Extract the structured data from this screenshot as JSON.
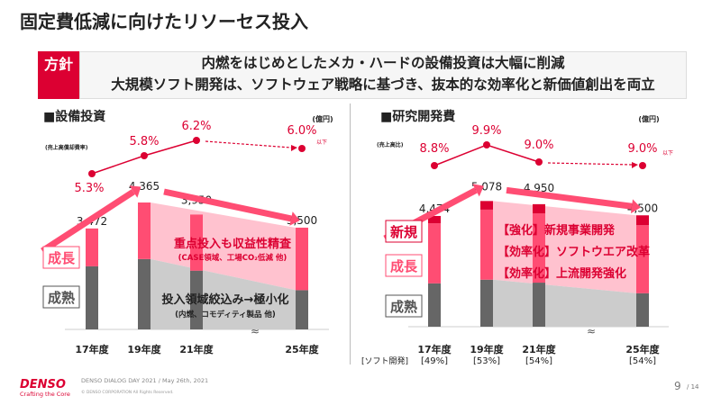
{
  "title": "固定費低減に向けたリソーセス投入",
  "policy": {
    "tag": "方針",
    "lines": [
      "内燃をはじめとしたメカ・ハードの設備投資は大幅に削減",
      "大規模ソフト開発は、ソフトウェア戦略に基づき、抜本的な効率化と新価値創出を両立"
    ]
  },
  "colors": {
    "accent": "#dc0032",
    "growth": "#ff4d73",
    "growth_band": "#ffc2cf",
    "mature": "#666666",
    "mature_band": "#cccccc",
    "new": "#dc0032"
  },
  "chart_data": [
    {
      "type": "bar",
      "title": "■設備投資",
      "unit": "(億円)",
      "rate_label": "(売上高償却費率)",
      "categories": [
        "17年度",
        "19年度",
        "21年度",
        "25年度"
      ],
      "totals": [
        3472,
        4365,
        3950,
        3500
      ],
      "total_labels": [
        "3,472",
        "4,365",
        "3,950",
        "3,500"
      ],
      "series": [
        {
          "name": "成熟",
          "values": [
            2170,
            2420,
            2020,
            1350
          ]
        },
        {
          "name": "成長",
          "values": [
            1302,
            1945,
            1930,
            2150
          ]
        }
      ],
      "rates": [
        5.3,
        5.8,
        6.2,
        6.0
      ],
      "rate_labels": [
        "5.3%",
        "5.8%",
        "6.2%",
        "6.0%"
      ],
      "rate_suffix": "以下",
      "annotations": {
        "growth_main": "重点投入も収益性精査",
        "growth_sub": "(CASE領域、工場CO₂低減 他)",
        "mature_main": "投入領域絞込み→極小化",
        "mature_sub": "(内燃、コモディティ製品 他)"
      },
      "ylim": [
        0,
        5000
      ]
    },
    {
      "type": "bar",
      "title": "■研究開発費",
      "unit": "(億円)",
      "rate_label": "(売上高比)",
      "categories": [
        "17年度",
        "19年度",
        "21年度",
        "25年度"
      ],
      "totals": [
        4474,
        5078,
        4950,
        4500
      ],
      "total_labels": [
        "4,474",
        "5,078",
        "4,950",
        "4,500"
      ],
      "series": [
        {
          "name": "成熟",
          "values": [
            1750,
            1900,
            1780,
            1350
          ]
        },
        {
          "name": "成長",
          "values": [
            2430,
            2830,
            2800,
            2750
          ]
        },
        {
          "name": "新規",
          "values": [
            294,
            348,
            370,
            400
          ]
        }
      ],
      "rates": [
        8.8,
        9.9,
        9.0,
        9.0
      ],
      "rate_labels": [
        "8.8%",
        "9.9%",
        "9.0%",
        "9.0%"
      ],
      "rate_suffix": "以下",
      "soft_label": "[ソフト開発]",
      "soft_share": [
        "[49%]",
        "[53%]",
        "[54%]",
        "[54%]"
      ],
      "annotations": [
        "【強化】新規事業開発",
        "【効率化】ソフトウエア改革",
        "【効率化】上流開発強化"
      ],
      "ylim": [
        0,
        5000
      ]
    }
  ],
  "legend": {
    "growth": "成長",
    "mature": "成熟",
    "new": "新規"
  },
  "footer": {
    "logo": "DENSO",
    "tagline": "Crafting the Core",
    "event": "DENSO DIALOG DAY 2021 / May 26th, 2021",
    "copyright": "© DENSO CORPORATION  All Rights Reserved.",
    "page": "9",
    "total": "/ 14"
  }
}
